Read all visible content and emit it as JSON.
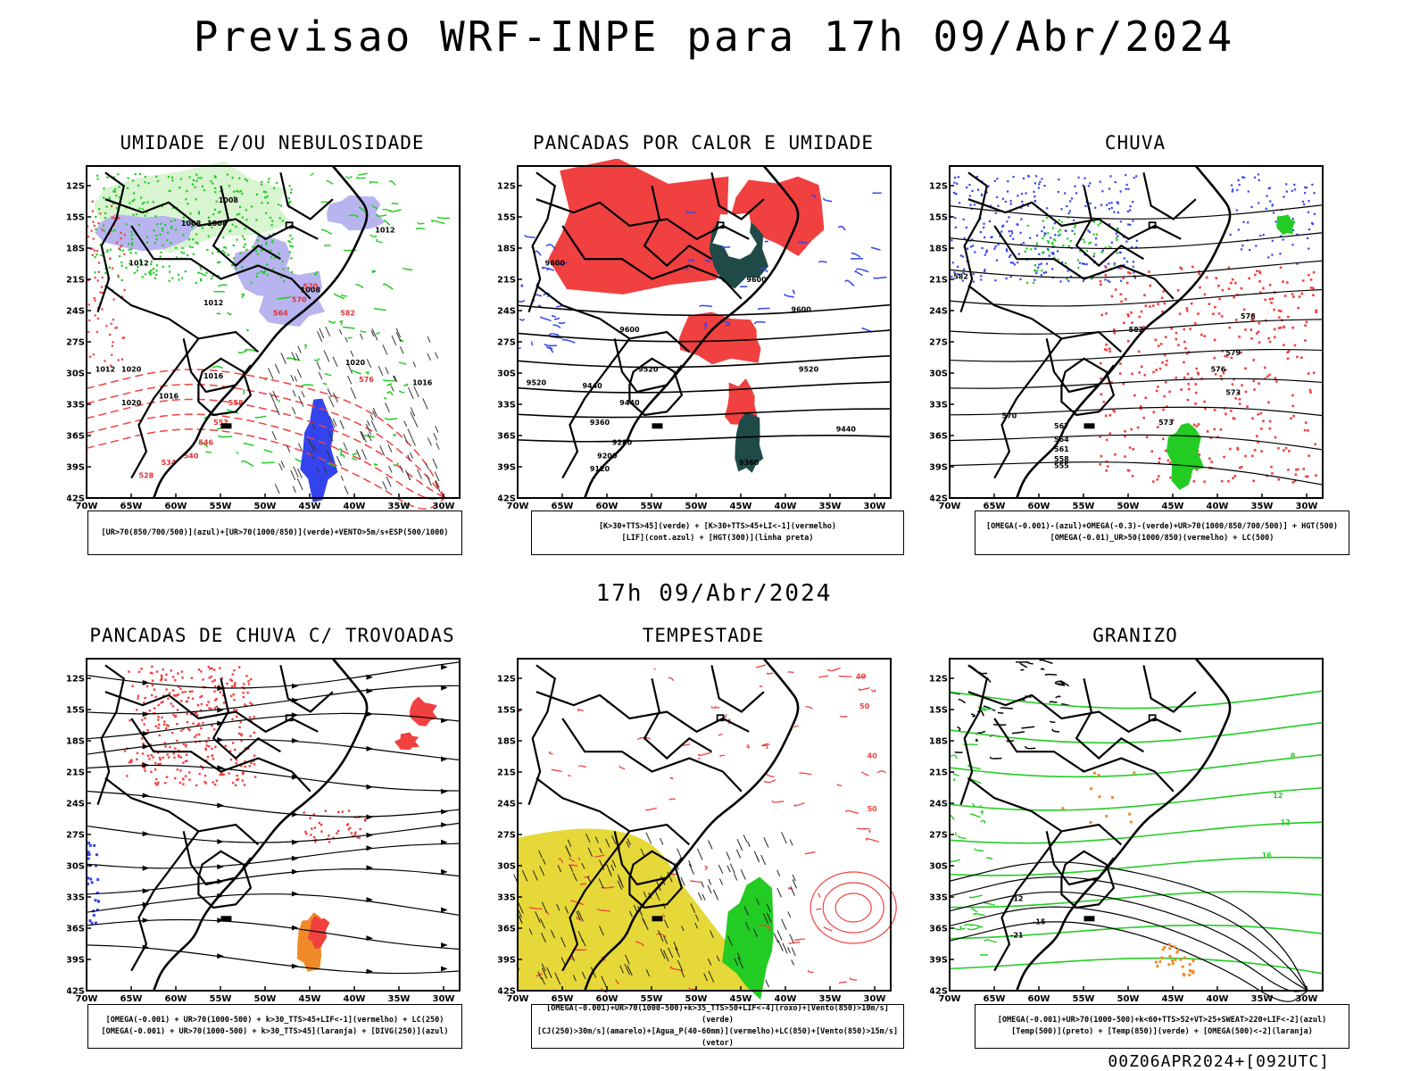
{
  "title": "Previsao WRF-INPE  para 17h 09/Abr/2024",
  "subtitle": "17h 09/Abr/2024",
  "footer": "00Z06APR2024+[092UTC]",
  "lat_ticks": [
    "12S",
    "15S",
    "18S",
    "21S",
    "24S",
    "27S",
    "30S",
    "33S",
    "36S",
    "39S",
    "42S"
  ],
  "lon_ticks": [
    "70W",
    "65W",
    "60W",
    "55W",
    "50W",
    "45W",
    "40W",
    "35W",
    "30W"
  ],
  "panels": [
    {
      "title": "UMIDADE E/OU NEBULOSIDADE",
      "legend": [
        "[UR>70(850/700/500)](azul)+[UR>70(1000/850)](verde)+VENTO>5m/s+ESP(500/1000)"
      ],
      "labels": [
        "1008",
        "1008",
        "1008",
        "1012",
        "1012",
        "1008",
        "1012",
        "1016",
        "1012",
        "1020",
        "1016",
        "1020",
        "1016",
        "1020",
        "576",
        "570",
        "570",
        "564",
        "558",
        "552",
        "546",
        "540",
        "534",
        "528",
        "582"
      ]
    },
    {
      "title": "PANCADAS POR CALOR E UMIDADE",
      "legend": [
        "[K>30+TTS>45](verde) + [K>30+TTS>45+LI<-1](vermelho)",
        "[LIF](cont.azul) + [HGT(300)](linha preta)"
      ],
      "labels": [
        "9600",
        "9600",
        "9600",
        "9600",
        "9520",
        "9520",
        "9440",
        "9440",
        "9440",
        "9360",
        "9360",
        "9280",
        "9200",
        "9120",
        "9520"
      ]
    },
    {
      "title": "CHUVA",
      "legend": [
        "[OMEGA(-0.001)-(azul)+OMEGA(-0.3)-(verde)+UR>70(1000/850/700/500)] + HGT(500)",
        "[OMEGA(-0.01)_UR>50(1000/850)(vermelho) + LC(500)"
      ],
      "labels": [
        "582",
        "582",
        "579",
        "576",
        "573",
        "570",
        "567",
        "564",
        "561",
        "558",
        "555",
        "576",
        "573"
      ]
    },
    {
      "title": "PANCADAS DE CHUVA C/ TROVOADAS",
      "legend": [
        "[OMEGA(-0.001) + UR>70(1000-500) + k>30_TTS>45+LIF<-1](vermelho) + LC(250)",
        "[OMEGA(-0.001) + UR>70(1000-500) + k>30_TTS>45](laranja) + [DIVG(250)](azul)"
      ],
      "labels": []
    },
    {
      "title": "TEMPESTADE",
      "legend": [
        "[OMEGA(-0.001)+UR>70(1000-500)+k>35_TTS>50+LIF<-4](roxo)+[Vento(850)>10m/s](verde)",
        "[CJ(250)>30m/s](amarelo)+[Agua_P(40-60mm)](vermelho)+LC(850)+[Vento(850)>15m/s](vetor)"
      ],
      "labels": [
        "40",
        "50",
        "40",
        "50"
      ]
    },
    {
      "title": "GRANIZO",
      "legend": [
        "[OMEGA(-0.001)+UR>70(1000-500)+k<60+TTS>52+VT>25+SWEAT>220+LIF<-2](azul)",
        "[Temp(500)](preto) + [Temp(850)](verde) + [OMEGA(500)<-2](laranja)"
      ],
      "labels": [
        "-12",
        "-15",
        "-21",
        "12",
        "16",
        "12",
        "8"
      ]
    }
  ],
  "colors": {
    "red": "#f04040",
    "green": "#22cc22",
    "blue": "#3344ee",
    "lavender": "#b8b4f0",
    "teal": "#1f4a48",
    "yellow": "#e6d838",
    "orange": "#f08a28",
    "black": "#000000"
  }
}
